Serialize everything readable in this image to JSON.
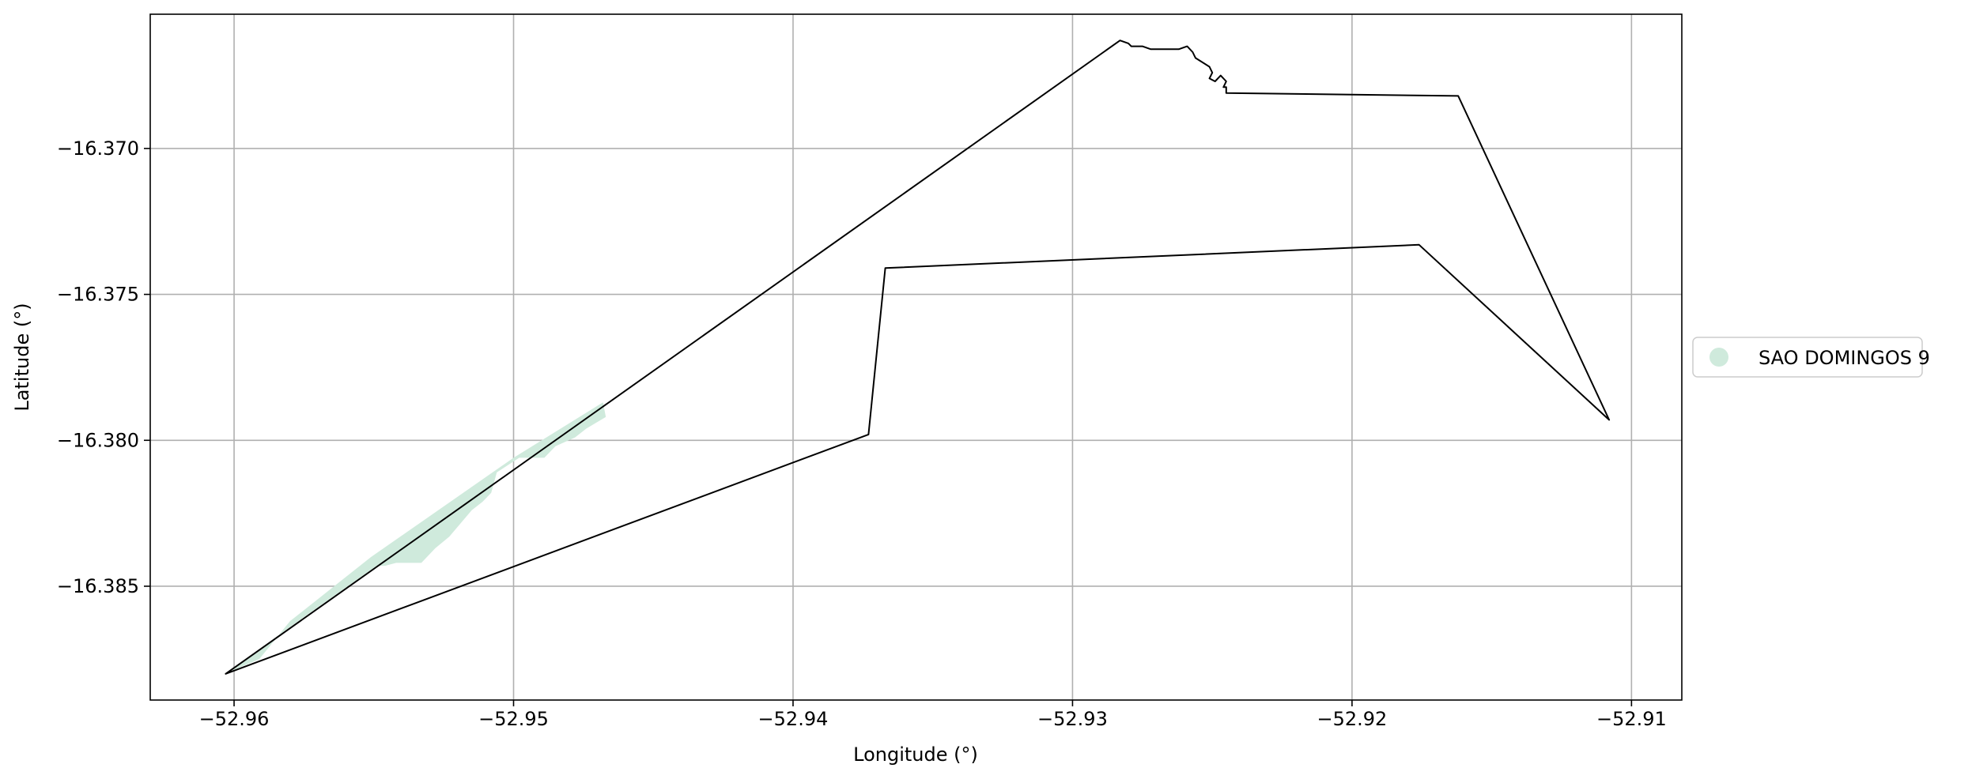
{
  "map": {
    "xlabel": "Longitude (°)",
    "ylabel": "Latitude (°)",
    "xlim": [
      -52.963,
      -52.9082
    ],
    "ylim": [
      -16.3889,
      -16.3654
    ],
    "x_ticks": [
      -52.96,
      -52.95,
      -52.94,
      -52.93,
      -52.92,
      -52.91
    ],
    "x_tick_labels": [
      "−52.96",
      "−52.95",
      "−52.94",
      "−52.93",
      "−52.92",
      "−52.91"
    ],
    "y_ticks": [
      -16.37,
      -16.375,
      -16.38,
      -16.385
    ],
    "y_tick_labels": [
      "−16.370",
      "−16.375",
      "−16.380",
      "−16.385"
    ],
    "grid": true,
    "legend_placement": "outside-right-center",
    "legend": [
      {
        "label": "SAO DOMINGOS 9",
        "color": "#cfeadc",
        "marker": "circle"
      }
    ],
    "boundary_color": "#000000",
    "grid_color": "#b0b0b0",
    "boundary": [
      [
        -52.9603,
        -16.388
      ],
      [
        -52.9283,
        -16.3663
      ],
      [
        -52.928,
        -16.3664
      ],
      [
        -52.9279,
        -16.3665
      ],
      [
        -52.9275,
        -16.3665
      ],
      [
        -52.9272,
        -16.3666
      ],
      [
        -52.9262,
        -16.3666
      ],
      [
        -52.9259,
        -16.3665
      ],
      [
        -52.9257,
        -16.3667
      ],
      [
        -52.9256,
        -16.3669
      ],
      [
        -52.9251,
        -16.3672
      ],
      [
        -52.925,
        -16.3674
      ],
      [
        -52.9251,
        -16.3676
      ],
      [
        -52.9249,
        -16.3677
      ],
      [
        -52.9247,
        -16.3675
      ],
      [
        -52.9245,
        -16.3677
      ],
      [
        -52.9246,
        -16.3679
      ],
      [
        -52.9245,
        -16.3679
      ],
      [
        -52.9245,
        -16.3681
      ],
      [
        -52.9162,
        -16.3682
      ],
      [
        -52.9108,
        -16.3793
      ],
      [
        -52.9176,
        -16.3733
      ],
      [
        -52.9367,
        -16.3741
      ],
      [
        -52.9373,
        -16.3798
      ],
      [
        -52.9603,
        -16.388
      ]
    ],
    "parcel_fill": [
      [
        -52.9601,
        -16.3879
      ],
      [
        -52.9591,
        -16.3875
      ],
      [
        -52.958,
        -16.3862
      ],
      [
        -52.9551,
        -16.384
      ],
      [
        -52.95,
        -16.3806
      ],
      [
        -52.9468,
        -16.3787
      ],
      [
        -52.9467,
        -16.3792
      ],
      [
        -52.9474,
        -16.3796
      ],
      [
        -52.9478,
        -16.3799
      ],
      [
        -52.9485,
        -16.3802
      ],
      [
        -52.9489,
        -16.3806
      ],
      [
        -52.9498,
        -16.3806
      ],
      [
        -52.9506,
        -16.3811
      ],
      [
        -52.9508,
        -16.3818
      ],
      [
        -52.9511,
        -16.3821
      ],
      [
        -52.9515,
        -16.3824
      ],
      [
        -52.9523,
        -16.3833
      ],
      [
        -52.9528,
        -16.3837
      ],
      [
        -52.9533,
        -16.3842
      ],
      [
        -52.9542,
        -16.3842
      ],
      [
        -52.9546,
        -16.3843
      ],
      [
        -52.9549,
        -16.3843
      ],
      [
        -52.9583,
        -16.3866
      ],
      [
        -52.9601,
        -16.3879
      ]
    ]
  }
}
